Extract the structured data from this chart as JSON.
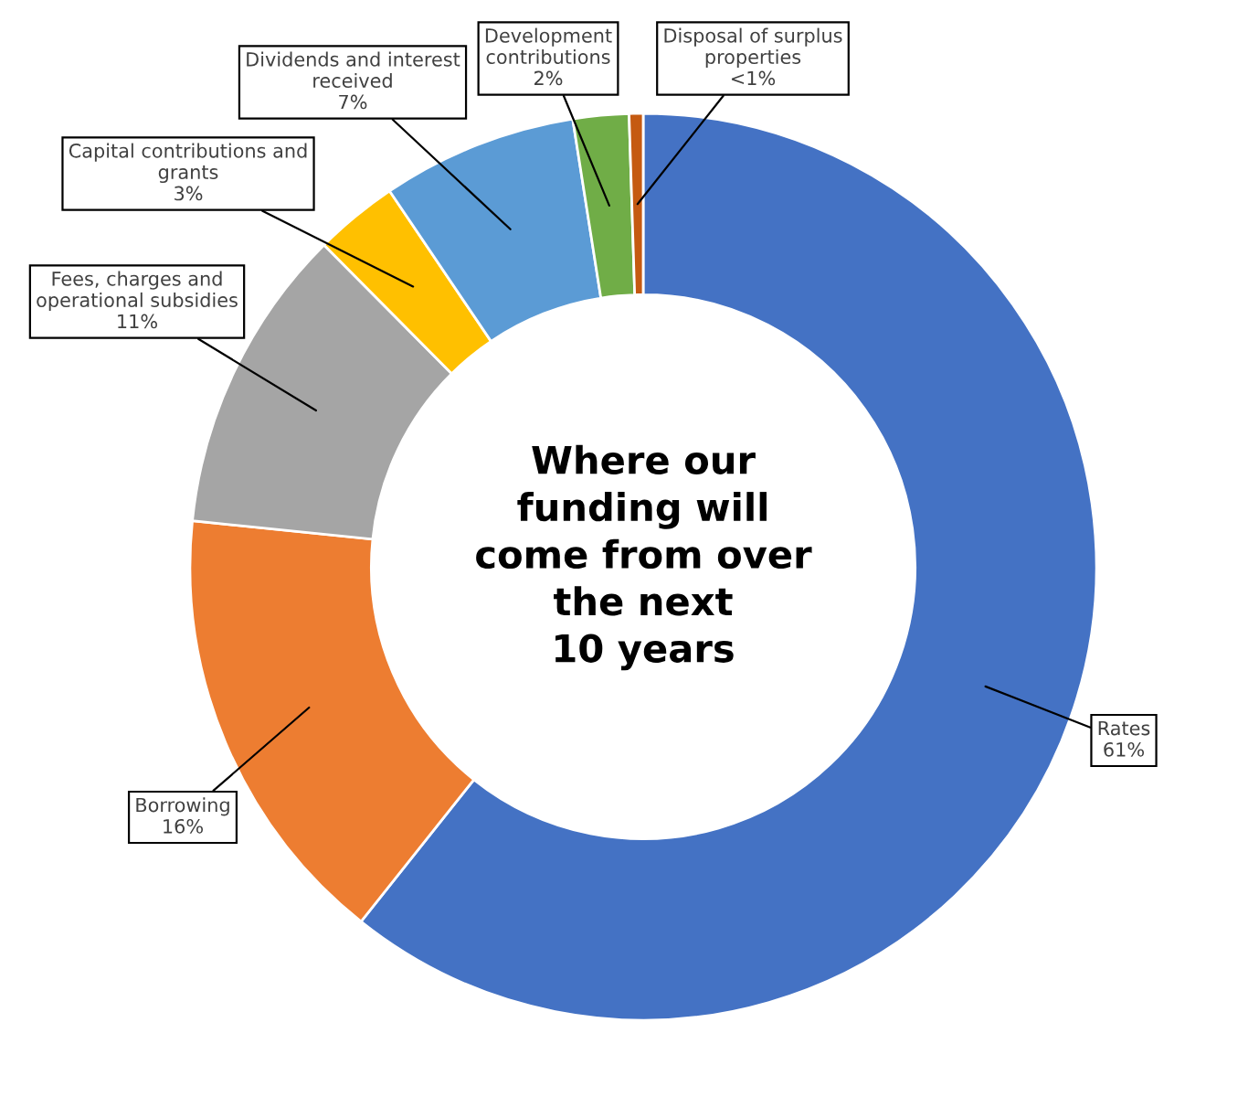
{
  "chart_data": {
    "type": "donut",
    "title": "Where our\nfunding will\ncome from over\nthe next\n10 years",
    "categories": [
      "Rates",
      "Borrowing",
      "Fees, charges and\noperational subsidies",
      "Capital contributions and\ngrants",
      "Dividends and interest\nreceived",
      "Development\ncontributions",
      "Disposal of surplus\nproperties"
    ],
    "values": [
      61,
      16,
      11,
      3,
      7,
      2,
      0.5
    ],
    "value_labels": [
      "61%",
      "16%",
      "11%",
      "3%",
      "7%",
      "2%",
      "<1%"
    ],
    "colors": [
      "#4472c4",
      "#ed7d31",
      "#a5a5a5",
      "#ffc000",
      "#5b9bd5",
      "#70ad47",
      "#c55a11"
    ]
  }
}
